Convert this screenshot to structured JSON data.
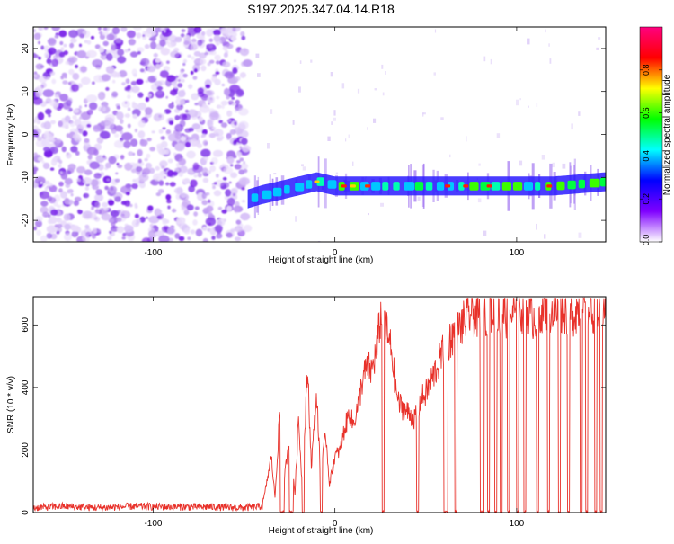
{
  "title": "S197.2025.347.04.14.R18",
  "chart_data": [
    {
      "type": "heatmap",
      "xlabel": "Height of straight line (km)",
      "ylabel": "Frequency (Hz)",
      "xlim": [
        -166,
        149
      ],
      "ylim": [
        -25,
        25
      ],
      "xticks": [
        -100,
        0,
        100
      ],
      "yticks": [
        -20,
        -10,
        0,
        10,
        20
      ],
      "colorbar": {
        "label": "Normalized spectral amplitude",
        "range": [
          0,
          1
        ],
        "ticks": [
          0.0,
          0.2,
          0.4,
          0.6,
          0.8
        ],
        "tick_labels": [
          "0.0",
          "0.2",
          "0.4",
          "0.6",
          "0.8"
        ],
        "stops": [
          "#ffffff",
          "#7f00ff",
          "#0000ff",
          "#00ffff",
          "#00ff00",
          "#ffff00",
          "#ff0000",
          "#ff0080"
        ]
      },
      "noise_region_km": [
        -166,
        -48
      ],
      "signal_line": {
        "x_km": [
          -48,
          -40,
          -30,
          -20,
          -10,
          0,
          10,
          20,
          40,
          60,
          80,
          100,
          120,
          149
        ],
        "freq_hz": [
          -15,
          -14,
          -13,
          -12,
          -11,
          -12,
          -12,
          -12,
          -12,
          -12,
          -12,
          -12,
          -12,
          -11
        ]
      }
    },
    {
      "type": "line",
      "xlabel": "Height of straight line (km)",
      "ylabel": "SNR (10 * v/v)",
      "xlim": [
        -166,
        149
      ],
      "ylim": [
        0,
        690
      ],
      "xticks": [
        -100,
        0,
        100
      ],
      "yticks": [
        0,
        200,
        400,
        600
      ],
      "series": [
        {
          "name": "SNR",
          "color": "#e8312a",
          "x_km": [
            -166,
            -150,
            -130,
            -110,
            -90,
            -70,
            -50,
            -40,
            -38,
            -35,
            -33,
            -30,
            -28,
            -25,
            -22,
            -20,
            -18,
            -15,
            -13,
            -10,
            -8,
            -5,
            -3,
            0,
            3,
            5,
            8,
            10,
            13,
            15,
            18,
            20,
            23,
            25,
            27,
            29,
            31,
            33,
            35,
            38,
            40,
            42,
            44,
            46,
            47,
            50,
            55,
            60,
            65,
            70,
            75,
            80,
            85,
            90,
            95,
            100,
            105,
            110,
            115,
            120,
            125,
            130,
            135,
            140,
            145,
            149
          ],
          "values": [
            15,
            20,
            15,
            20,
            18,
            18,
            15,
            20,
            80,
            180,
            50,
            350,
            100,
            250,
            60,
            300,
            80,
            460,
            150,
            380,
            120,
            250,
            90,
            180,
            200,
            260,
            320,
            280,
            350,
            420,
            470,
            450,
            520,
            620,
            640,
            560,
            520,
            420,
            350,
            330,
            320,
            310,
            300,
            330,
            360,
            380,
            450,
            520,
            570,
            600,
            640,
            620,
            650,
            640,
            630,
            640,
            650,
            620,
            660,
            640,
            650,
            630,
            660,
            640,
            650,
            660
          ],
          "dropouts_km": [
            [
              -30,
              -28
            ],
            [
              -25,
              -23
            ],
            [
              -18,
              -17
            ],
            [
              -8,
              -7
            ],
            [
              26,
              27
            ],
            [
              45,
              46
            ],
            [
              60,
              62
            ],
            [
              66,
              67
            ],
            [
              80,
              82
            ],
            [
              84,
              85
            ],
            [
              88,
              89
            ],
            [
              91,
              92
            ],
            [
              95,
              96
            ],
            [
              100,
              101
            ],
            [
              104,
              105
            ],
            [
              111,
              112
            ],
            [
              117,
              118
            ],
            [
              123,
              124
            ],
            [
              128,
              129
            ],
            [
              135,
              136
            ],
            [
              138,
              139
            ],
            [
              143,
              144
            ],
            [
              146,
              147
            ]
          ]
        }
      ]
    }
  ]
}
